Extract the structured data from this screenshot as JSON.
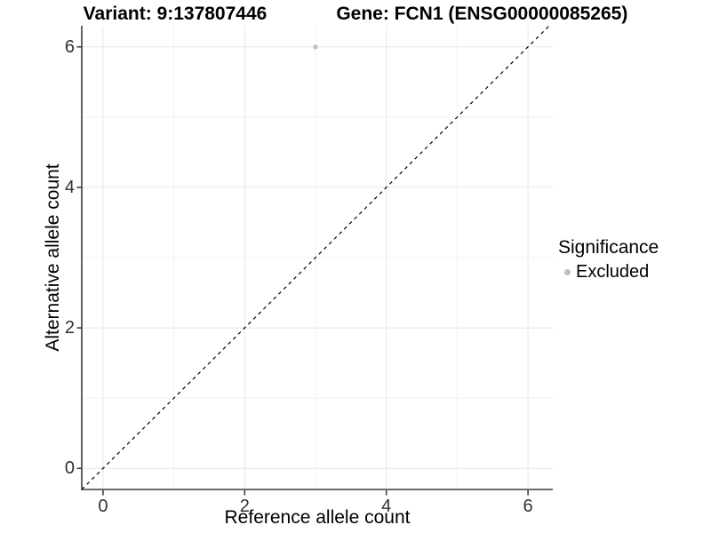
{
  "figure": {
    "title_left": "Variant: 9:137807446",
    "title_right": "Gene: FCN1 (ENSG00000085265)"
  },
  "chart_data": {
    "type": "scatter",
    "title": "Variant: 9:137807446   Gene: FCN1 (ENSG00000085265)",
    "xlabel": "Reference allele count",
    "ylabel": "Alternative allele count",
    "xlim": [
      -0.3,
      6.35
    ],
    "ylim": [
      -0.3,
      6.3
    ],
    "xticks": [
      0,
      2,
      4,
      6
    ],
    "yticks": [
      0,
      2,
      4,
      6
    ],
    "minor_xticks": [
      1,
      3,
      5
    ],
    "minor_yticks": [
      1,
      3,
      5
    ],
    "grid": "major and minor gridlines, white background",
    "series": [
      {
        "name": "Excluded",
        "color": "#bebebe",
        "points": [
          {
            "x": 3,
            "y": 6
          }
        ]
      }
    ],
    "identity_line": {
      "type": "y=x",
      "style": "dashed",
      "color": "#000000"
    },
    "legend": {
      "title": "Significance",
      "position": "right",
      "entries": [
        {
          "label": "Excluded",
          "color": "#bebebe"
        }
      ]
    },
    "style": {
      "grid_major_color": "#e7e7e7",
      "grid_minor_color": "#f2f2f2",
      "axis_color": "#3c3c3c"
    }
  }
}
